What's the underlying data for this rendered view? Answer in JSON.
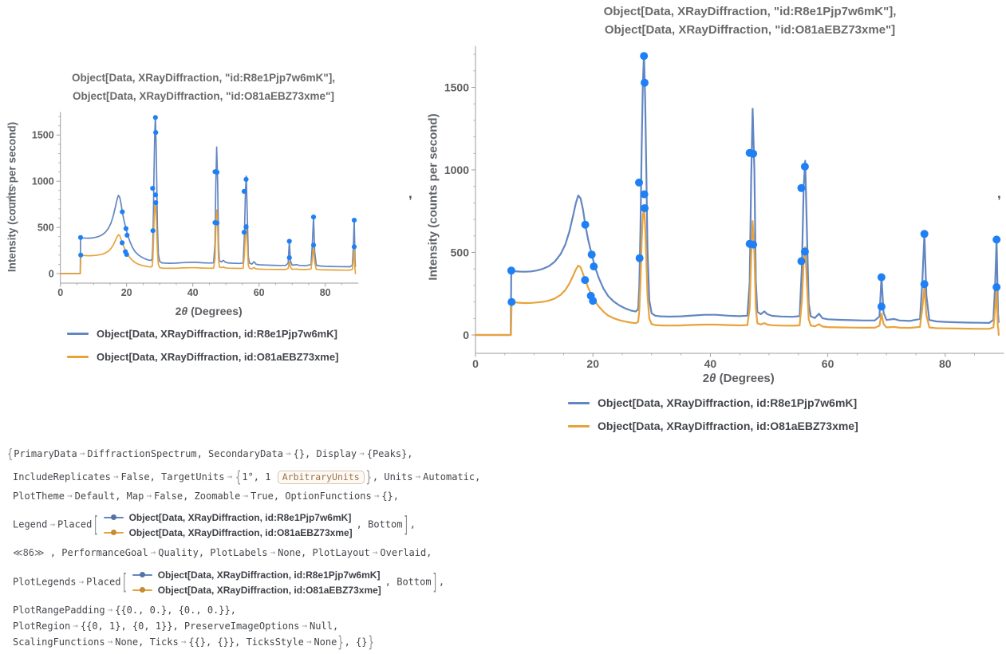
{
  "list_delimiters": {
    "open": "{",
    "separator": ",",
    "trailing": ","
  },
  "chart_data": {
    "type": "line",
    "title_lines": [
      "Object[Data, XRayDiffraction, \"id:R8e1Pjp7w6mK\"],",
      "Object[Data, XRayDiffraction, \"id:O81aEBZ73xme\"]"
    ],
    "xlabel": "2θ (Degrees)",
    "ylabel": "Intensity (counts per second)",
    "xlim": [
      0,
      90
    ],
    "ylim": [
      0,
      1750
    ],
    "x_ticks": [
      0,
      20,
      40,
      60,
      80
    ],
    "y_ticks": [
      0,
      500,
      1000,
      1500
    ],
    "x_minor_step": 5,
    "y_minor_step": 100,
    "axis_color": "#9e9e9e",
    "tick_label_color": "#5c5e61",
    "series": [
      {
        "name": "Object[Data, XRayDiffraction, id:R8e1Pjp7w6mK]",
        "color": "#6286c2",
        "points": [
          [
            0,
            0
          ],
          [
            6.0,
            0
          ],
          [
            6.1,
            390
          ],
          [
            6.6,
            386
          ],
          [
            7.5,
            384
          ],
          [
            8.5,
            383
          ],
          [
            9.5,
            385
          ],
          [
            10.5,
            391
          ],
          [
            11.5,
            401
          ],
          [
            12.5,
            417
          ],
          [
            13.5,
            444
          ],
          [
            14.5,
            490
          ],
          [
            15.3,
            548
          ],
          [
            16.0,
            628
          ],
          [
            16.6,
            720
          ],
          [
            17.1,
            800
          ],
          [
            17.5,
            845
          ],
          [
            17.9,
            828
          ],
          [
            18.3,
            762
          ],
          [
            18.7,
            668
          ],
          [
            19.2,
            576
          ],
          [
            19.8,
            487
          ],
          [
            20.4,
            408
          ],
          [
            21.0,
            345
          ],
          [
            21.8,
            281
          ],
          [
            22.6,
            236
          ],
          [
            23.5,
            204
          ],
          [
            24.5,
            179
          ],
          [
            25.5,
            161
          ],
          [
            26.5,
            148
          ],
          [
            27.3,
            142
          ],
          [
            27.7,
            156
          ],
          [
            27.9,
            290
          ],
          [
            28.1,
            640
          ],
          [
            28.3,
            1130
          ],
          [
            28.5,
            1520
          ],
          [
            28.7,
            1700
          ],
          [
            28.9,
            1430
          ],
          [
            29.1,
            980
          ],
          [
            29.3,
            520
          ],
          [
            29.6,
            210
          ],
          [
            30.0,
            132
          ],
          [
            30.6,
            117
          ],
          [
            31.5,
            113
          ],
          [
            33,
            111
          ],
          [
            35,
            113
          ],
          [
            37,
            118
          ],
          [
            39,
            122
          ],
          [
            41,
            122
          ],
          [
            43,
            117
          ],
          [
            45,
            114
          ],
          [
            46.3,
            117
          ],
          [
            46.7,
            320
          ],
          [
            46.95,
            950
          ],
          [
            47.2,
            1370
          ],
          [
            47.5,
            1000
          ],
          [
            47.75,
            330
          ],
          [
            48.0,
            140
          ],
          [
            48.6,
            126
          ],
          [
            49.2,
            143
          ],
          [
            49.7,
            126
          ],
          [
            50.5,
            116
          ],
          [
            52,
            112
          ],
          [
            54,
            110
          ],
          [
            55.2,
            114
          ],
          [
            55.6,
            420
          ],
          [
            55.9,
            900
          ],
          [
            56.15,
            1055
          ],
          [
            56.5,
            560
          ],
          [
            56.75,
            190
          ],
          [
            57.1,
            113
          ],
          [
            57.8,
            103
          ],
          [
            58.5,
            129
          ],
          [
            59.1,
            101
          ],
          [
            60,
            95
          ],
          [
            62,
            92
          ],
          [
            64,
            90
          ],
          [
            66,
            88
          ],
          [
            68,
            88
          ],
          [
            68.8,
            112
          ],
          [
            69.15,
            355
          ],
          [
            69.5,
            135
          ],
          [
            70,
            91
          ],
          [
            71.3,
            97
          ],
          [
            72.2,
            88
          ],
          [
            74,
            85
          ],
          [
            75.7,
            97
          ],
          [
            76.1,
            320
          ],
          [
            76.45,
            615
          ],
          [
            76.8,
            240
          ],
          [
            77.3,
            91
          ],
          [
            78.5,
            82
          ],
          [
            80,
            79
          ],
          [
            82,
            77
          ],
          [
            84,
            75
          ],
          [
            86,
            74
          ],
          [
            87.5,
            73
          ],
          [
            88.2,
            92
          ],
          [
            88.5,
            310
          ],
          [
            88.75,
            580
          ],
          [
            89.0,
            130
          ],
          [
            89.1,
            78
          ]
        ]
      },
      {
        "name": "Object[Data, XRayDiffraction, id:O81aEBZ73xme]",
        "color": "#e7a33b",
        "points": [
          [
            0,
            0
          ],
          [
            6.05,
            0
          ],
          [
            6.15,
            200
          ],
          [
            6.6,
            197
          ],
          [
            7.5,
            195
          ],
          [
            8.5,
            193
          ],
          [
            9.5,
            194
          ],
          [
            10.5,
            197
          ],
          [
            11.5,
            201
          ],
          [
            12.5,
            208
          ],
          [
            13.5,
            221
          ],
          [
            14.5,
            243
          ],
          [
            15.3,
            272
          ],
          [
            16.0,
            312
          ],
          [
            16.6,
            357
          ],
          [
            17.1,
            397
          ],
          [
            17.5,
            420
          ],
          [
            17.9,
            411
          ],
          [
            18.3,
            372
          ],
          [
            18.7,
            333
          ],
          [
            19.2,
            286
          ],
          [
            19.8,
            240
          ],
          [
            20.4,
            202
          ],
          [
            21.0,
            172
          ],
          [
            21.8,
            141
          ],
          [
            22.6,
            118
          ],
          [
            23.5,
            102
          ],
          [
            24.5,
            90
          ],
          [
            25.5,
            81
          ],
          [
            26.5,
            75
          ],
          [
            27.3,
            71
          ],
          [
            27.7,
            79
          ],
          [
            27.9,
            145
          ],
          [
            28.1,
            320
          ],
          [
            28.3,
            565
          ],
          [
            28.5,
            720
          ],
          [
            28.7,
            778
          ],
          [
            28.9,
            660
          ],
          [
            29.1,
            450
          ],
          [
            29.3,
            240
          ],
          [
            29.6,
            100
          ],
          [
            30.0,
            66
          ],
          [
            30.6,
            60
          ],
          [
            31.5,
            58
          ],
          [
            33,
            57
          ],
          [
            35,
            58
          ],
          [
            37,
            61
          ],
          [
            39,
            63
          ],
          [
            41,
            63
          ],
          [
            43,
            60
          ],
          [
            45,
            58
          ],
          [
            46.3,
            60
          ],
          [
            46.7,
            160
          ],
          [
            46.95,
            480
          ],
          [
            47.2,
            690
          ],
          [
            47.5,
            500
          ],
          [
            47.75,
            165
          ],
          [
            48.0,
            71
          ],
          [
            48.6,
            64
          ],
          [
            49.2,
            72
          ],
          [
            49.7,
            63
          ],
          [
            50.5,
            59
          ],
          [
            52,
            57
          ],
          [
            54,
            56
          ],
          [
            55.2,
            58
          ],
          [
            55.6,
            210
          ],
          [
            55.9,
            450
          ],
          [
            56.15,
            532
          ],
          [
            56.5,
            280
          ],
          [
            56.75,
            95
          ],
          [
            57.1,
            57
          ],
          [
            57.8,
            52
          ],
          [
            58.5,
            65
          ],
          [
            59.1,
            51
          ],
          [
            60,
            48
          ],
          [
            62,
            46
          ],
          [
            64,
            45
          ],
          [
            66,
            44
          ],
          [
            68,
            44
          ],
          [
            68.8,
            56
          ],
          [
            69.15,
            128
          ],
          [
            69.5,
            67
          ],
          [
            70,
            46
          ],
          [
            71.3,
            49
          ],
          [
            72.2,
            44
          ],
          [
            74,
            43
          ],
          [
            75.7,
            49
          ],
          [
            76.1,
            160
          ],
          [
            76.45,
            295
          ],
          [
            76.8,
            120
          ],
          [
            77.3,
            46
          ],
          [
            78.5,
            41
          ],
          [
            80,
            40
          ],
          [
            82,
            39
          ],
          [
            84,
            38
          ],
          [
            86,
            37
          ],
          [
            87.5,
            37
          ],
          [
            88.2,
            46
          ],
          [
            88.5,
            155
          ],
          [
            88.75,
            290
          ],
          [
            88.95,
            55
          ],
          [
            89.05,
            37
          ],
          [
            89.1,
            0
          ]
        ]
      }
    ],
    "peak_markers": {
      "color": "#1f80f5",
      "points": [
        [
          6.1,
          390
        ],
        [
          6.15,
          200
        ],
        [
          18.7,
          668
        ],
        [
          19.8,
          487
        ],
        [
          20.15,
          415
        ],
        [
          18.65,
          333
        ],
        [
          19.65,
          237
        ],
        [
          20.0,
          207
        ],
        [
          27.85,
          923
        ],
        [
          27.95,
          465
        ],
        [
          28.7,
          1690
        ],
        [
          28.8,
          1528
        ],
        [
          28.75,
          852
        ],
        [
          28.8,
          768
        ],
        [
          46.7,
          1103
        ],
        [
          47.3,
          1098
        ],
        [
          46.7,
          552
        ],
        [
          47.3,
          548
        ],
        [
          55.5,
          890
        ],
        [
          56.1,
          1020
        ],
        [
          55.5,
          447
        ],
        [
          56.1,
          505
        ],
        [
          69.15,
          350
        ],
        [
          69.15,
          172
        ],
        [
          76.45,
          612
        ],
        [
          76.45,
          308
        ],
        [
          88.75,
          578
        ],
        [
          88.75,
          290
        ]
      ]
    },
    "legend_position": "bottom"
  },
  "legend_entries": [
    {
      "label": "Object[Data, XRayDiffraction, id:R8e1Pjp7w6mK]",
      "color": "#6286c2"
    },
    {
      "label": "Object[Data, XRayDiffraction, id:O81aEBZ73xme]",
      "color": "#e7a33b"
    }
  ],
  "options": {
    "lines": [
      [
        [
          "b",
          "{",
          1.3
        ],
        [
          "t",
          "PrimaryData"
        ],
        [
          "r",
          "→"
        ],
        [
          "t",
          "DiffractionSpectrum, SecondaryData"
        ],
        [
          "r",
          "→"
        ],
        [
          "t",
          "{}, Display"
        ],
        [
          "r",
          "→"
        ],
        [
          "t",
          "{Peaks},"
        ]
      ],
      [
        [
          "t",
          "IncludeReplicates"
        ],
        [
          "r",
          "→"
        ],
        [
          "t",
          "False, TargetUnits"
        ],
        [
          "r",
          "→"
        ],
        [
          "b",
          "{",
          1.6
        ],
        [
          "t",
          "1°, 1 "
        ],
        [
          "x",
          "ArbitraryUnits"
        ],
        [
          "b",
          "}",
          1.6
        ],
        [
          "t",
          ", Units"
        ],
        [
          "r",
          "→"
        ],
        [
          "t",
          "Automatic,"
        ]
      ],
      [
        [
          "t",
          "PlotTheme"
        ],
        [
          "r",
          "→"
        ],
        [
          "t",
          "Default, Map"
        ],
        [
          "r",
          "→"
        ],
        [
          "t",
          "False, Zoomable"
        ],
        [
          "r",
          "→"
        ],
        [
          "t",
          "True, OptionFunctions"
        ],
        [
          "r",
          "→"
        ],
        [
          "t",
          "{},"
        ]
      ],
      [
        [
          "t",
          "Legend"
        ],
        [
          "r",
          "→"
        ],
        [
          "t",
          "Placed"
        ],
        [
          "b",
          "[",
          2.3
        ],
        [
          "L",
          ""
        ],
        [
          "t",
          ", Bottom"
        ],
        [
          "b",
          "]",
          2.3
        ],
        [
          "t",
          ","
        ]
      ],
      [
        [
          "s",
          "≪86≫"
        ],
        [
          "t",
          " , PerformanceGoal"
        ],
        [
          "r",
          "→"
        ],
        [
          "t",
          "Quality, PlotLabels"
        ],
        [
          "r",
          "→"
        ],
        [
          "t",
          "None, PlotLayout"
        ],
        [
          "r",
          "→"
        ],
        [
          "t",
          "Overlaid,"
        ]
      ],
      [
        [
          "t",
          "PlotLegends"
        ],
        [
          "r",
          "→"
        ],
        [
          "t",
          "Placed"
        ],
        [
          "b",
          "[",
          2.3
        ],
        [
          "L",
          ""
        ],
        [
          "t",
          ", Bottom"
        ],
        [
          "b",
          "]",
          2.3
        ],
        [
          "t",
          ","
        ]
      ],
      [
        [
          "t",
          "PlotRangePadding"
        ],
        [
          "r",
          "→"
        ],
        [
          "t",
          "{{0., 0.}, {0., 0.}},"
        ]
      ],
      [
        [
          "t",
          "PlotRegion"
        ],
        [
          "r",
          "→"
        ],
        [
          "t",
          "{{0, 1}, {0, 1}}, PreserveImageOptions"
        ],
        [
          "r",
          "→"
        ],
        [
          "t",
          "Null,"
        ]
      ],
      [
        [
          "t",
          "ScalingFunctions"
        ],
        [
          "r",
          "→"
        ],
        [
          "t",
          "None, Ticks"
        ],
        [
          "r",
          "→"
        ],
        [
          "t",
          "{{}, {}}, TicksStyle"
        ],
        [
          "r",
          "→"
        ],
        [
          "t",
          "None"
        ],
        [
          "b",
          "}",
          1.6
        ],
        [
          "t",
          ", {}"
        ],
        [
          "b",
          "}",
          1.6
        ]
      ]
    ]
  }
}
